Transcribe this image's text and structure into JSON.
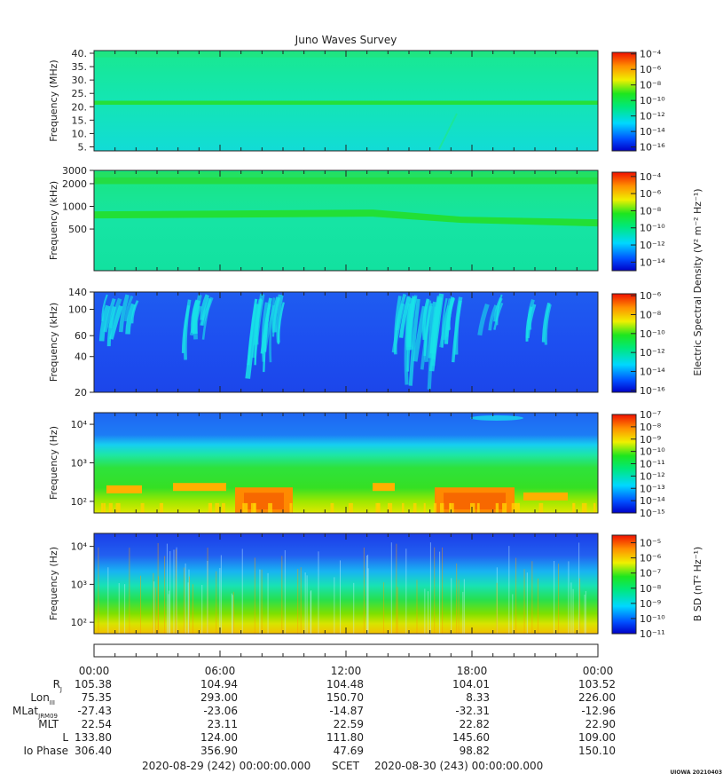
{
  "title": "Juno Waves Survey",
  "footer": {
    "start_label": "2020-08-29 (242) 00:00:00.000",
    "scet_label": "SCET",
    "end_label": "2020-08-30 (243) 00:00:00.000",
    "stamp": "UIOWA 20210403"
  },
  "colorbar_labels": {
    "electric": "Electric Spectral Density (V² m⁻² Hz⁻¹)",
    "magnetic": "B SD (nT² Hz⁻¹)"
  },
  "chart_data": [
    {
      "type": "heatmap",
      "panel": "HFR high",
      "title": "Juno Waves Survey",
      "ylabel": "Frequency (MHz)",
      "yticks": [
        "40.",
        "35.",
        "30.",
        "25.",
        "20.",
        "15.",
        "10.",
        "5."
      ],
      "ytick_values": [
        40,
        35,
        30,
        25,
        20,
        15,
        10,
        5
      ],
      "ylim": [
        3.5,
        41
      ],
      "scale": "linear",
      "features": [
        {
          "type": "band",
          "center": 21.5,
          "width": 1.5
        }
      ],
      "colorbar": {
        "ticks": [
          "10⁻⁴",
          "10⁻⁶",
          "10⁻⁸",
          "10⁻¹⁰",
          "10⁻¹²",
          "10⁻¹⁴",
          "10⁻¹⁶"
        ],
        "range_log10": [
          -16.5,
          -3.8
        ]
      }
    },
    {
      "type": "heatmap",
      "panel": "HFR low",
      "ylabel": "Frequency (kHz)",
      "yticks": [
        "3000",
        "2000",
        "1000",
        "500"
      ],
      "ytick_values": [
        3000,
        2000,
        1000,
        500
      ],
      "ylim": [
        140,
        3000
      ],
      "scale": "log",
      "features": [
        {
          "type": "band",
          "from": 770,
          "to": 620
        },
        {
          "type": "band",
          "center": 2200
        }
      ],
      "colorbar": {
        "ticks": [
          "10⁻⁴",
          "10⁻⁶",
          "10⁻⁸",
          "10⁻¹⁰",
          "10⁻¹²",
          "10⁻¹⁴"
        ],
        "range_log10": [
          -15,
          -3.5
        ]
      }
    },
    {
      "type": "heatmap",
      "panel": "LFR high",
      "ylabel": "Frequency (kHz)",
      "yticks": [
        "140",
        "100",
        "60",
        "40",
        "20"
      ],
      "ytick_values": [
        140,
        100,
        60,
        40,
        20
      ],
      "ylim": [
        20,
        140
      ],
      "scale": "log",
      "colorbar": {
        "ticks": [
          "10⁻⁶",
          "10⁻⁸",
          "10⁻¹⁰",
          "10⁻¹²",
          "10⁻¹⁴",
          "10⁻¹⁶"
        ],
        "range_log10": [
          -16.2,
          -5.8
        ]
      }
    },
    {
      "type": "heatmap",
      "panel": "LFR low",
      "ylabel": "Frequency (Hz)",
      "yticks": [
        "10⁴",
        "10³",
        "10²"
      ],
      "ytick_values": [
        10000,
        1000,
        100
      ],
      "ylim": [
        50,
        20000
      ],
      "scale": "log",
      "colorbar": {
        "ticks": [
          "10⁻⁷",
          "10⁻⁸",
          "10⁻⁹",
          "10⁻¹⁰",
          "10⁻¹¹",
          "10⁻¹²",
          "10⁻¹³",
          "10⁻¹⁴",
          "10⁻¹⁵"
        ],
        "range_log10": [
          -15,
          -7
        ]
      }
    },
    {
      "type": "heatmap",
      "panel": "Magnetic",
      "ylabel": "Frequency (Hz)",
      "yticks": [
        "10⁴",
        "10³",
        "10²"
      ],
      "ytick_values": [
        10000,
        1000,
        100
      ],
      "ylim": [
        50,
        22000
      ],
      "scale": "log",
      "colorbar": {
        "ticks": [
          "10⁻⁵",
          "10⁻⁶",
          "10⁻⁷",
          "10⁻⁸",
          "10⁻⁹",
          "10⁻¹⁰",
          "10⁻¹¹"
        ],
        "range_log10": [
          -11,
          -4.5
        ]
      }
    }
  ],
  "x_axis": {
    "ticks": [
      "00:00",
      "06:00",
      "12:00",
      "18:00",
      "00:00"
    ],
    "hours": [
      0,
      6,
      12,
      18,
      24
    ]
  },
  "ephemeris": [
    {
      "label": "R",
      "sub": "J",
      "values": [
        "105.38",
        "104.94",
        "104.48",
        "104.01",
        "103.52"
      ]
    },
    {
      "label": "Lon",
      "sub": "III",
      "values": [
        "75.35",
        "293.00",
        "150.70",
        "8.33",
        "226.00"
      ]
    },
    {
      "label": "MLat",
      "sub": "JRM09",
      "values": [
        "-27.43",
        "-23.06",
        "-14.87",
        "-32.31",
        "-12.96"
      ]
    },
    {
      "label": "MLT",
      "sub": "",
      "values": [
        "22.54",
        "23.11",
        "22.59",
        "22.82",
        "22.90"
      ]
    },
    {
      "label": "L",
      "sub": "",
      "values": [
        "133.80",
        "124.00",
        "111.80",
        "145.60",
        "109.00"
      ]
    },
    {
      "label": "Io Phase",
      "sub": "",
      "values": [
        "306.40",
        "356.90",
        "47.69",
        "98.82",
        "150.10"
      ]
    }
  ]
}
